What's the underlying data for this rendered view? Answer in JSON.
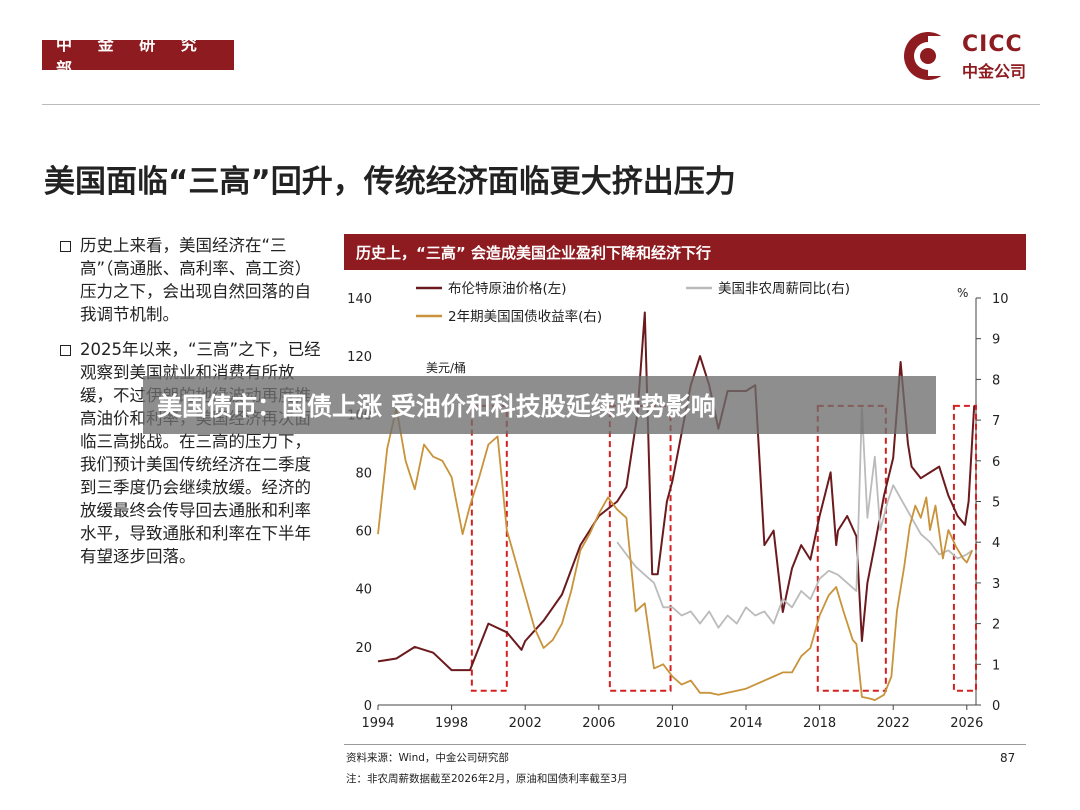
{
  "header": {
    "tag": "中 金 研 究 部",
    "logo_en": "CICC",
    "logo_cn": "中金公司"
  },
  "title": "美国面临“三高”回升，传统经济面临更大挤出压力",
  "bullets": [
    "历史上来看，美国经济在“三高”（高通胀、高利率、高工资）压力之下，会出现自然回落的自我调节机制。",
    "2025年以来，“三高”之下，已经观察到美国就业和消费有所放缓，不过伊朗的地缘波动再度推高油价和利率，美国经济再次面临三高挑战。在三高的压力下，我们预计美国传统经济在二季度到三季度仍会继续放缓。经济的放缓最终会传导回去通胀和利率水平，导致通胀和利率在下半年有望逐步回落。"
  ],
  "overlay": "美国债市：国债上涨 受油价和科技股延续跌势影响",
  "footer": {
    "source": "资料来源：Wind，中金公司研究部",
    "note": "注：非农周薪数据截至2026年2月，原油和国债利率截至3月",
    "page": "87"
  },
  "chart_data": {
    "type": "line",
    "title": "历史上，“三高” 会造成美国企业盈利下降和经济下行",
    "left_unit": "美元/桶",
    "right_unit": "%",
    "x_range": [
      1994,
      2026.5
    ],
    "x_ticks": [
      1994,
      1998,
      2002,
      2006,
      2010,
      2014,
      2018,
      2022,
      2026
    ],
    "y_left_range": [
      0,
      140
    ],
    "y_left_ticks": [
      0,
      20,
      40,
      60,
      80,
      100,
      120,
      140
    ],
    "y_right_range": [
      0,
      10
    ],
    "y_right_ticks": [
      0,
      1,
      2,
      3,
      4,
      5,
      6,
      7,
      8,
      9,
      10
    ],
    "legend_placement": "top",
    "series": [
      {
        "name": "布伦特原油价格(左)",
        "axis": "left",
        "color": "#6b1a1e",
        "points": [
          [
            1994,
            15
          ],
          [
            1995,
            16
          ],
          [
            1996,
            20
          ],
          [
            1997,
            18
          ],
          [
            1998,
            12
          ],
          [
            1999,
            12
          ],
          [
            1999.5,
            20
          ],
          [
            2000,
            28
          ],
          [
            2001,
            25
          ],
          [
            2001.8,
            19
          ],
          [
            2002,
            22
          ],
          [
            2003,
            29
          ],
          [
            2004,
            38
          ],
          [
            2005,
            55
          ],
          [
            2006,
            65
          ],
          [
            2007,
            70
          ],
          [
            2007.5,
            75
          ],
          [
            2008.1,
            100
          ],
          [
            2008.5,
            135
          ],
          [
            2008.9,
            45
          ],
          [
            2009.2,
            45
          ],
          [
            2009.7,
            70
          ],
          [
            2010,
            77
          ],
          [
            2011,
            110
          ],
          [
            2011.5,
            120
          ],
          [
            2012,
            110
          ],
          [
            2012.5,
            95
          ],
          [
            2013,
            108
          ],
          [
            2014,
            108
          ],
          [
            2014.5,
            110
          ],
          [
            2015,
            55
          ],
          [
            2015.5,
            60
          ],
          [
            2016,
            32
          ],
          [
            2016.5,
            47
          ],
          [
            2017,
            55
          ],
          [
            2017.5,
            50
          ],
          [
            2018,
            65
          ],
          [
            2018.6,
            80
          ],
          [
            2018.9,
            55
          ],
          [
            2019,
            60
          ],
          [
            2019.5,
            65
          ],
          [
            2020,
            58
          ],
          [
            2020.3,
            22
          ],
          [
            2020.6,
            42
          ],
          [
            2021,
            55
          ],
          [
            2021.5,
            72
          ],
          [
            2022,
            85
          ],
          [
            2022.4,
            118
          ],
          [
            2022.8,
            90
          ],
          [
            2023,
            82
          ],
          [
            2023.5,
            78
          ],
          [
            2024,
            80
          ],
          [
            2024.5,
            82
          ],
          [
            2025,
            72
          ],
          [
            2025.5,
            65
          ],
          [
            2025.9,
            62
          ],
          [
            2026.1,
            70
          ],
          [
            2026.4,
            103
          ]
        ]
      },
      {
        "name": "美国非农周薪同比(右)",
        "axis": "right",
        "color": "#bbbbbb",
        "points": [
          [
            2007,
            4.0
          ],
          [
            2007.5,
            3.7
          ],
          [
            2008,
            3.4
          ],
          [
            2008.5,
            3.2
          ],
          [
            2009,
            3.0
          ],
          [
            2009.5,
            2.4
          ],
          [
            2010,
            2.4
          ],
          [
            2010.5,
            2.2
          ],
          [
            2011,
            2.3
          ],
          [
            2011.5,
            2.0
          ],
          [
            2012,
            2.3
          ],
          [
            2012.5,
            1.9
          ],
          [
            2013,
            2.2
          ],
          [
            2013.5,
            2.0
          ],
          [
            2014,
            2.4
          ],
          [
            2014.5,
            2.2
          ],
          [
            2015,
            2.3
          ],
          [
            2015.5,
            2.0
          ],
          [
            2016,
            2.6
          ],
          [
            2016.5,
            2.4
          ],
          [
            2017,
            2.8
          ],
          [
            2017.5,
            2.6
          ],
          [
            2018,
            3.1
          ],
          [
            2018.5,
            3.3
          ],
          [
            2019,
            3.2
          ],
          [
            2019.5,
            3.0
          ],
          [
            2020,
            2.8
          ],
          [
            2020.3,
            7.3
          ],
          [
            2020.6,
            4.6
          ],
          [
            2021,
            6.1
          ],
          [
            2021.3,
            4.3
          ],
          [
            2021.7,
            5.0
          ],
          [
            2022,
            5.4
          ],
          [
            2022.5,
            5.0
          ],
          [
            2023,
            4.6
          ],
          [
            2023.5,
            4.2
          ],
          [
            2024,
            4.0
          ],
          [
            2024.5,
            3.7
          ],
          [
            2025,
            3.8
          ],
          [
            2025.5,
            3.6
          ],
          [
            2026,
            3.7
          ],
          [
            2026.3,
            3.8
          ]
        ]
      },
      {
        "name": "2年期美国国债收益率(右)",
        "axis": "right",
        "color": "#c8933a",
        "points": [
          [
            1994,
            4.2
          ],
          [
            1994.5,
            6.3
          ],
          [
            1995,
            7.3
          ],
          [
            1995.5,
            6.0
          ],
          [
            1996,
            5.3
          ],
          [
            1996.5,
            6.4
          ],
          [
            1997,
            6.1
          ],
          [
            1997.5,
            6.0
          ],
          [
            1998,
            5.6
          ],
          [
            1998.6,
            4.2
          ],
          [
            1999,
            4.9
          ],
          [
            1999.5,
            5.6
          ],
          [
            2000,
            6.4
          ],
          [
            2000.5,
            6.6
          ],
          [
            2001,
            4.3
          ],
          [
            2001.5,
            3.5
          ],
          [
            2002,
            2.7
          ],
          [
            2002.5,
            1.9
          ],
          [
            2003,
            1.4
          ],
          [
            2003.5,
            1.6
          ],
          [
            2004,
            2.0
          ],
          [
            2004.5,
            2.8
          ],
          [
            2005,
            3.8
          ],
          [
            2005.5,
            4.2
          ],
          [
            2006,
            4.7
          ],
          [
            2006.5,
            5.1
          ],
          [
            2007,
            4.8
          ],
          [
            2007.5,
            4.6
          ],
          [
            2008,
            2.3
          ],
          [
            2008.5,
            2.5
          ],
          [
            2009,
            0.9
          ],
          [
            2009.5,
            1.0
          ],
          [
            2010,
            0.7
          ],
          [
            2010.5,
            0.5
          ],
          [
            2011,
            0.6
          ],
          [
            2011.5,
            0.3
          ],
          [
            2012,
            0.3
          ],
          [
            2012.5,
            0.25
          ],
          [
            2013,
            0.3
          ],
          [
            2013.5,
            0.35
          ],
          [
            2014,
            0.4
          ],
          [
            2014.5,
            0.5
          ],
          [
            2015,
            0.6
          ],
          [
            2015.5,
            0.7
          ],
          [
            2016,
            0.8
          ],
          [
            2016.5,
            0.8
          ],
          [
            2017,
            1.2
          ],
          [
            2017.5,
            1.4
          ],
          [
            2018,
            2.2
          ],
          [
            2018.5,
            2.7
          ],
          [
            2018.9,
            2.9
          ],
          [
            2019.3,
            2.3
          ],
          [
            2019.8,
            1.6
          ],
          [
            2020,
            1.5
          ],
          [
            2020.3,
            0.2
          ],
          [
            2020.8,
            0.15
          ],
          [
            2021,
            0.12
          ],
          [
            2021.5,
            0.25
          ],
          [
            2021.9,
            0.7
          ],
          [
            2022.2,
            2.3
          ],
          [
            2022.6,
            3.4
          ],
          [
            2022.9,
            4.4
          ],
          [
            2023.2,
            4.9
          ],
          [
            2023.5,
            4.6
          ],
          [
            2023.8,
            5.1
          ],
          [
            2024,
            4.3
          ],
          [
            2024.3,
            4.9
          ],
          [
            2024.7,
            3.6
          ],
          [
            2025,
            4.3
          ],
          [
            2025.4,
            3.9
          ],
          [
            2025.8,
            3.6
          ],
          [
            2026,
            3.5
          ],
          [
            2026.3,
            3.8
          ]
        ]
      }
    ],
    "highlight_periods": [
      [
        1999.1,
        2001.0
      ],
      [
        2006.6,
        2009.9
      ],
      [
        2017.9,
        2021.6
      ],
      [
        2025.3,
        2026.5
      ]
    ]
  }
}
